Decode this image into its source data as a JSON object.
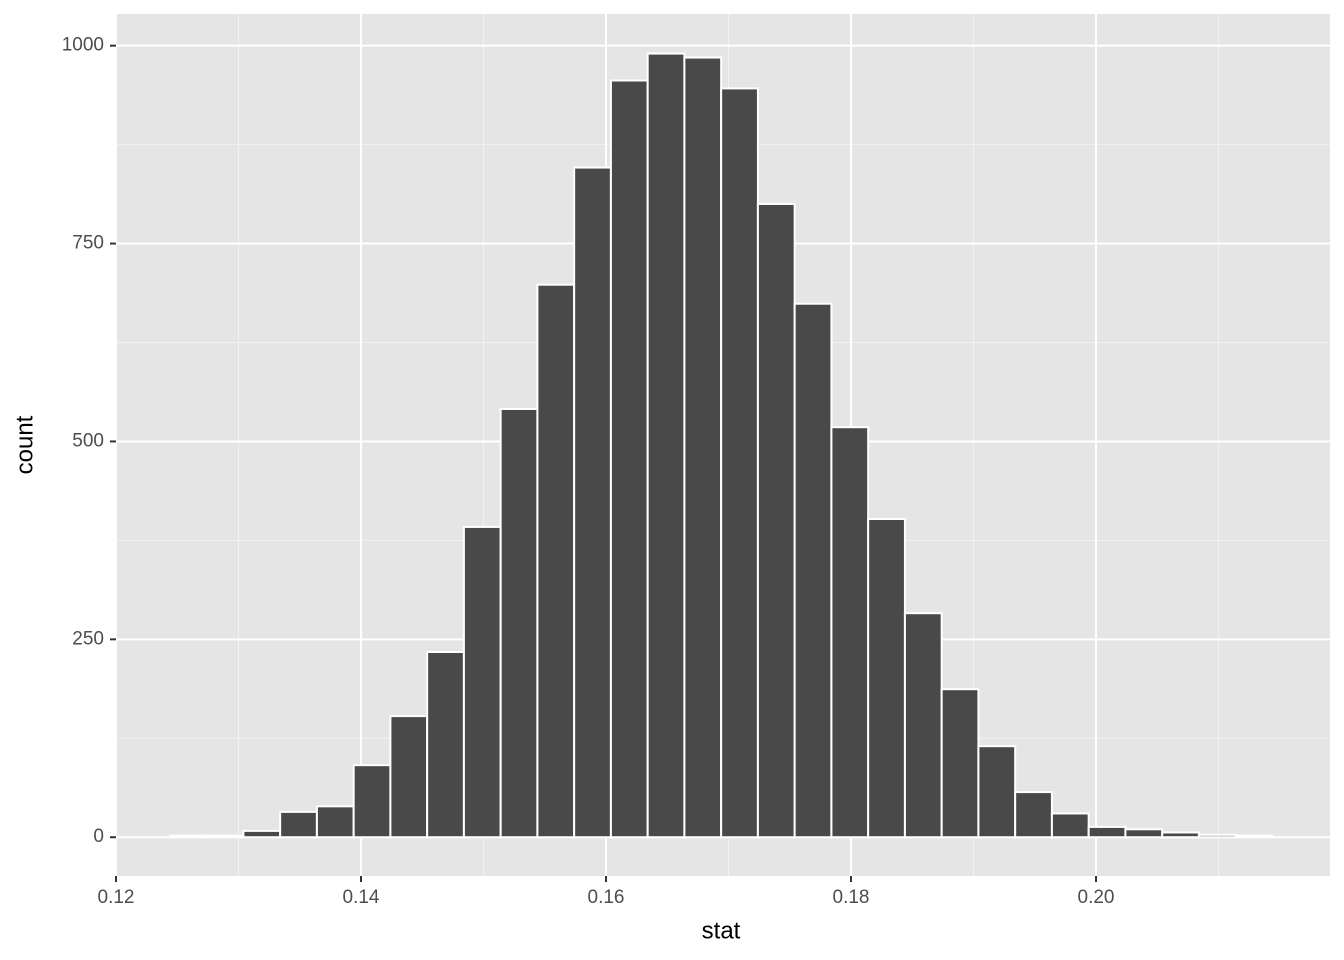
{
  "chart_data": {
    "type": "histogram",
    "x_label": "stat",
    "y_label": "count",
    "bins": [
      0.1244,
      0.1274,
      0.1304,
      0.1334,
      0.1364,
      0.1394,
      0.1424,
      0.1454,
      0.1484,
      0.1514,
      0.1544,
      0.1574,
      0.1604,
      0.1634,
      0.1664,
      0.1694,
      0.1724,
      0.1754,
      0.1784,
      0.1814,
      0.1844,
      0.1874,
      0.1904,
      0.1934,
      0.1964,
      0.1994,
      0.2024,
      0.2054,
      0.2084,
      0.2114,
      0.2144
    ],
    "counts": [
      2,
      2,
      8,
      32,
      39,
      91,
      153,
      234,
      392,
      541,
      698,
      846,
      956,
      990,
      985,
      946,
      800,
      674,
      518,
      402,
      283,
      187,
      115,
      57,
      30,
      13,
      10,
      6,
      3,
      2
    ],
    "color": "#494949",
    "xlim": [
      0.12,
      0.2191
    ],
    "ylim": [
      -49,
      1040
    ],
    "xticks": [
      0.12,
      0.14,
      0.16,
      0.18,
      {
        "value": 0.2,
        "label": "0.20"
      }
    ],
    "yticks": [
      0,
      250,
      500,
      750,
      1000
    ],
    "grid": true
  }
}
